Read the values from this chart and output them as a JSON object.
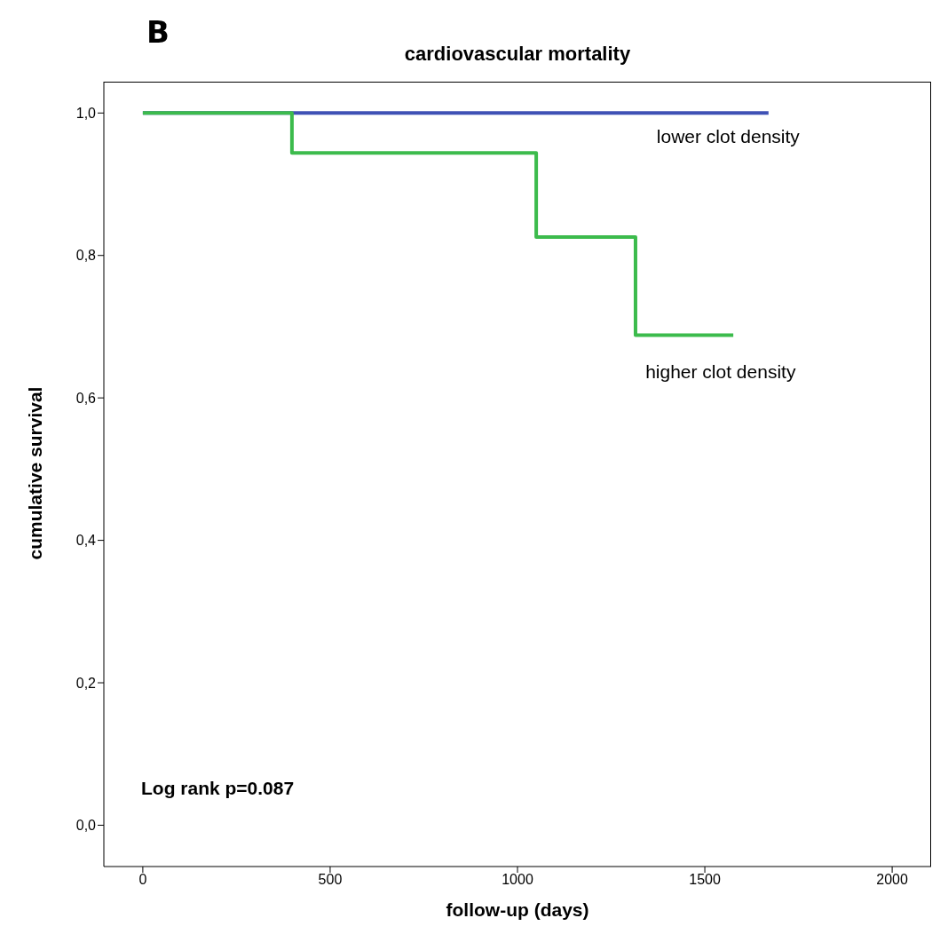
{
  "chart_data": {
    "type": "step",
    "title": "cardiovascular mortality",
    "xlabel": "follow-up (days)",
    "ylabel": "cumulative survival",
    "annotations": [
      "B",
      "Log rank p=0.087"
    ],
    "series": [
      {
        "name": "lower clot density",
        "color": "#3f51b5",
        "x": [
          0,
          1670
        ],
        "values": [
          1,
          1
        ]
      },
      {
        "name": "higher clot density",
        "color": "#3cbb4c",
        "x": [
          0,
          398,
          1050,
          1315,
          1576
        ],
        "values": [
          1,
          0.944,
          0.826,
          0.688,
          0.688
        ]
      }
    ],
    "xlim": [
      -104,
      2104
    ],
    "xticks": [
      0,
      500,
      1000,
      1500,
      2000
    ],
    "ylim": [
      -0.058,
      1.044
    ],
    "yticks": [
      {
        "value": 0,
        "label": "0,0"
      },
      {
        "value": 0.2,
        "label": "0,2"
      },
      {
        "value": 0.4,
        "label": "0,4"
      },
      {
        "value": 0.6,
        "label": "0,6"
      },
      {
        "value": 0.8,
        "label": "0,8"
      },
      {
        "value": 1,
        "label": "1,0"
      }
    ],
    "grid": false,
    "line_style": "solid",
    "marker": "none"
  }
}
